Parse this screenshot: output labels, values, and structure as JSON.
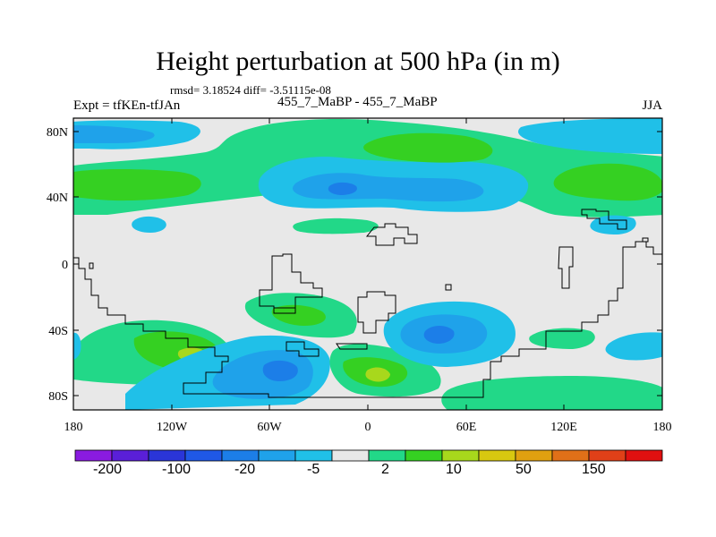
{
  "header": {
    "title": "Height perturbation at 500 hPa (in m)",
    "stats": "rmsd= 3.18524 diff= -3.51115e-08",
    "left_label": "Expt = tfKEn-tfJAn",
    "center_label": "455_7_MaBP - 455_7_MaBP",
    "right_label": "JJA"
  },
  "axes": {
    "y_ticks": [
      "80N",
      "40N",
      "0",
      "40S",
      "80S"
    ],
    "x_ticks": [
      "180",
      "120W",
      "60W",
      "0",
      "60E",
      "120E",
      "180"
    ]
  },
  "colorbar": {
    "labels": [
      "-200",
      "-100",
      "-20",
      "-5",
      "2",
      "10",
      "50",
      "150"
    ],
    "colors": [
      "#8a1be0",
      "#5a1fd8",
      "#2a35d8",
      "#1f58e6",
      "#1c7ee8",
      "#1fa2ea",
      "#20c0e8",
      "#e8e8e8",
      "#22d888",
      "#35d022",
      "#a8d81c",
      "#d8c810",
      "#e0a010",
      "#e07018",
      "#e04018",
      "#e01010"
    ]
  },
  "map": {
    "background_color": "#e8e8e8",
    "contour_colors": {
      "cyan": "#20c0e8",
      "light_blue": "#1fa2ea",
      "blue": "#1c7ee8",
      "green": "#22d888",
      "bright_green": "#35d022",
      "yellow_green": "#a8d81c"
    }
  }
}
